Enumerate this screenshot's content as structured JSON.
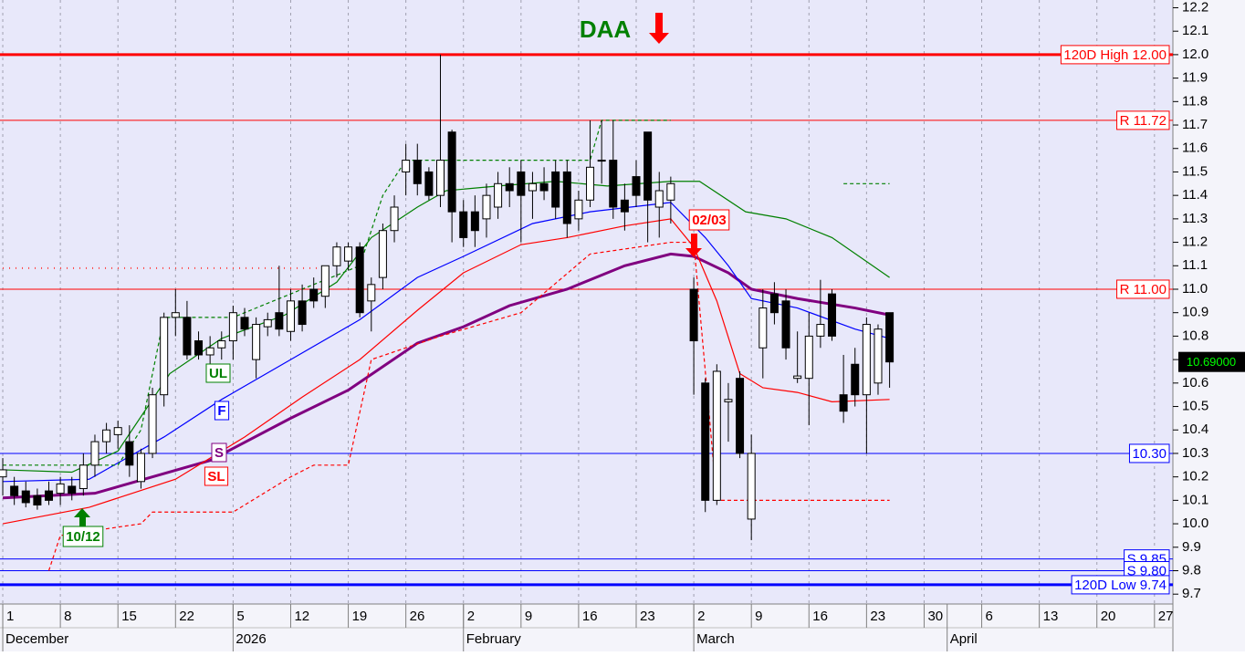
{
  "chart_data": {
    "type": "candlestick",
    "xlim": [
      -0.24,
      101.6
    ],
    "ylim": [
      9.658,
      12.233
    ],
    "xticks": [
      {
        "value": 0,
        "label": "1"
      },
      {
        "value": 5,
        "label": "8"
      },
      {
        "value": 10,
        "label": "15"
      },
      {
        "value": 15,
        "label": "22"
      },
      {
        "value": 20,
        "label": "5"
      },
      {
        "value": 25,
        "label": "12"
      },
      {
        "value": 30,
        "label": "19"
      },
      {
        "value": 35,
        "label": "26"
      },
      {
        "value": 40,
        "label": "2"
      },
      {
        "value": 45,
        "label": "9"
      },
      {
        "value": 50,
        "label": "16"
      },
      {
        "value": 55,
        "label": "23"
      },
      {
        "value": 60,
        "label": "2"
      },
      {
        "value": 65,
        "label": "9"
      },
      {
        "value": 70,
        "label": "16"
      },
      {
        "value": 75,
        "label": "23"
      },
      {
        "value": 80,
        "label": "30"
      },
      {
        "value": 85,
        "label": "6"
      },
      {
        "value": 90,
        "label": "13"
      },
      {
        "value": 95,
        "label": "20"
      },
      {
        "value": 100,
        "label": "27"
      }
    ],
    "month_labels": [
      {
        "value": 0,
        "label": "December"
      },
      {
        "value": 20,
        "label": "2026"
      },
      {
        "value": 40,
        "label": "February"
      },
      {
        "value": 60,
        "label": "March"
      },
      {
        "value": 82,
        "label": "April"
      }
    ],
    "yticks": [
      9.7,
      9.8,
      9.9,
      {
        "value": 10.0,
        "label": "10.0"
      },
      10.1,
      10.2,
      10.3,
      10.4,
      10.5,
      10.6,
      10.7,
      10.8,
      10.9,
      {
        "value": 11.0,
        "label": "11.0"
      },
      11.1,
      11.2,
      11.3,
      11.4,
      11.5,
      11.6,
      11.7,
      11.8,
      11.9,
      {
        "value": 12.0,
        "label": "12.0"
      },
      12.1,
      12.2
    ],
    "grid": true,
    "candles": {
      "up_color": "#ffffff",
      "down_color": "#000000",
      "x": [
        0,
        1,
        2,
        3,
        4,
        5,
        6,
        7,
        8,
        9,
        10,
        11,
        12,
        13,
        14,
        15,
        16,
        17,
        18,
        19,
        20,
        21,
        22,
        23,
        24,
        25,
        26,
        27,
        28,
        29,
        30,
        31,
        32,
        33,
        34,
        35,
        36,
        37,
        38,
        39,
        40,
        41,
        42,
        43,
        44,
        45,
        46,
        47,
        48,
        49,
        50,
        51,
        52,
        53,
        54,
        55,
        56,
        57,
        58,
        60,
        61,
        62,
        63,
        64,
        65,
        66,
        67,
        68,
        69,
        70,
        71,
        72,
        73,
        74,
        75,
        76,
        77
      ],
      "open": [
        10.2,
        10.16,
        10.14,
        10.12,
        10.14,
        10.13,
        10.16,
        10.15,
        10.25,
        10.35,
        10.38,
        10.35,
        10.18,
        10.3,
        10.55,
        10.88,
        10.88,
        10.78,
        10.72,
        10.75,
        10.78,
        10.88,
        10.7,
        10.84,
        10.9,
        10.82,
        10.95,
        11.0,
        10.97,
        11.1,
        11.12,
        11.18,
        10.95,
        11.05,
        11.25,
        11.5,
        11.55,
        11.5,
        11.4,
        11.67,
        11.33,
        11.33,
        11.3,
        11.35,
        11.45,
        11.5,
        11.42,
        11.45,
        11.5,
        11.5,
        11.3,
        11.38,
        11.55,
        11.55,
        11.38,
        11.48,
        11.67,
        11.35,
        11.38,
        11.0,
        10.6,
        10.1,
        10.52,
        10.62,
        10.02,
        10.75,
        10.98,
        10.95,
        10.62,
        10.62,
        10.8,
        10.98,
        10.55,
        10.68,
        10.55,
        10.6,
        10.9
      ],
      "high": [
        10.28,
        10.2,
        10.18,
        10.15,
        10.18,
        10.2,
        10.2,
        10.3,
        10.38,
        10.43,
        10.44,
        10.42,
        10.32,
        10.58,
        10.9,
        11.0,
        10.95,
        10.82,
        10.8,
        10.82,
        10.93,
        10.92,
        10.88,
        10.9,
        11.1,
        11.0,
        11.02,
        11.05,
        11.1,
        11.2,
        11.2,
        11.2,
        11.05,
        11.28,
        11.4,
        11.62,
        11.62,
        11.52,
        12.0,
        11.68,
        11.38,
        11.4,
        11.45,
        11.5,
        11.52,
        11.55,
        11.5,
        11.52,
        11.55,
        11.55,
        11.42,
        11.72,
        11.72,
        11.72,
        11.45,
        11.55,
        11.67,
        11.5,
        11.48,
        11.05,
        10.62,
        10.68,
        10.6,
        10.65,
        10.38,
        11.0,
        11.03,
        11.0,
        10.82,
        10.9,
        11.04,
        11.0,
        10.72,
        10.75,
        10.88,
        10.85,
        10.9
      ],
      "low": [
        10.12,
        10.08,
        10.07,
        10.06,
        10.08,
        10.08,
        10.1,
        10.12,
        10.2,
        10.3,
        10.32,
        10.2,
        10.15,
        10.28,
        10.5,
        10.8,
        10.7,
        10.7,
        10.65,
        10.7,
        10.7,
        10.8,
        10.62,
        10.8,
        10.8,
        10.78,
        10.82,
        10.92,
        10.92,
        11.05,
        11.08,
        10.88,
        10.82,
        11.0,
        11.2,
        11.4,
        11.4,
        11.38,
        11.35,
        11.2,
        11.18,
        11.18,
        11.22,
        11.3,
        11.35,
        11.2,
        11.3,
        11.38,
        11.3,
        11.22,
        11.25,
        11.35,
        11.45,
        11.3,
        11.25,
        11.35,
        11.2,
        11.22,
        11.28,
        10.55,
        10.05,
        10.08,
        10.35,
        10.28,
        9.93,
        10.62,
        10.85,
        10.7,
        10.6,
        10.42,
        10.75,
        10.78,
        10.43,
        10.5,
        10.3,
        10.55,
        10.58
      ],
      "close": [
        10.23,
        10.12,
        10.09,
        10.08,
        10.1,
        10.17,
        10.13,
        10.25,
        10.35,
        10.4,
        10.41,
        10.25,
        10.3,
        10.55,
        10.88,
        10.9,
        10.72,
        10.72,
        10.75,
        10.78,
        10.9,
        10.83,
        10.85,
        10.87,
        10.83,
        10.95,
        10.85,
        10.95,
        11.1,
        11.18,
        11.18,
        10.9,
        11.02,
        11.25,
        11.35,
        11.55,
        11.45,
        11.4,
        11.55,
        11.33,
        11.22,
        11.25,
        11.4,
        11.45,
        11.42,
        11.4,
        11.45,
        11.42,
        11.35,
        11.28,
        11.38,
        11.52,
        11.55,
        11.35,
        11.33,
        11.4,
        11.38,
        11.42,
        11.45,
        10.78,
        10.1,
        10.65,
        10.53,
        10.3,
        10.3,
        10.92,
        10.9,
        10.75,
        10.63,
        10.8,
        10.85,
        10.8,
        10.48,
        10.55,
        10.85,
        10.83,
        10.69
      ]
    },
    "lines": [
      {
        "name": "S",
        "color": "#800080",
        "style": "heavy",
        "x": [
          0,
          8,
          18,
          25,
          30,
          36,
          40,
          44,
          49,
          54,
          58,
          60,
          63,
          65,
          69,
          74,
          77
        ],
        "values": [
          10.11,
          10.13,
          10.27,
          10.45,
          10.57,
          10.77,
          10.84,
          10.93,
          11.0,
          11.1,
          11.15,
          11.14,
          11.07,
          11.0,
          10.96,
          10.92,
          10.89
        ]
      },
      {
        "name": "F",
        "color": "#0000ff",
        "style": "solid",
        "x": [
          0,
          7.5,
          14,
          19,
          25,
          31,
          36,
          40,
          46,
          51,
          58,
          61,
          63,
          65,
          69,
          74,
          77
        ],
        "values": [
          10.18,
          10.19,
          10.37,
          10.53,
          10.7,
          10.87,
          11.05,
          11.14,
          11.28,
          11.33,
          11.37,
          11.22,
          11.1,
          10.96,
          10.92,
          10.83,
          10.79
        ]
      },
      {
        "name": "SL",
        "color": "#ff0000",
        "style": "solid",
        "x": [
          0,
          7.5,
          15,
          21,
          26,
          31,
          36,
          40,
          45,
          49,
          54,
          58,
          60,
          62,
          64,
          66,
          69,
          72,
          77
        ],
        "values": [
          10.0,
          10.07,
          10.19,
          10.37,
          10.54,
          10.7,
          10.91,
          11.07,
          11.19,
          11.22,
          11.27,
          11.3,
          11.18,
          10.95,
          10.64,
          10.58,
          10.56,
          10.52,
          10.53
        ]
      },
      {
        "name": "UL",
        "color": "#008000",
        "style": "solid",
        "x": [
          0,
          6,
          10,
          14.5,
          19,
          24.5,
          29,
          32,
          36,
          38.5,
          43,
          48,
          52.5,
          58,
          60.5,
          64.5,
          68,
          72,
          77
        ],
        "values": [
          10.23,
          10.22,
          10.31,
          10.64,
          10.79,
          10.89,
          11.03,
          11.22,
          11.35,
          11.42,
          11.44,
          11.46,
          11.44,
          11.46,
          11.46,
          11.33,
          11.3,
          11.22,
          11.05
        ]
      },
      {
        "color": "#008000",
        "style": "dashed",
        "x": [
          0,
          10,
          12,
          14,
          20,
          26,
          31,
          33,
          35,
          38,
          51,
          52,
          58,
          72,
          73,
          77
        ],
        "values": [
          10.25,
          10.25,
          10.4,
          10.88,
          10.88,
          11.0,
          11.1,
          11.4,
          11.55,
          11.55,
          11.55,
          11.72,
          11.72,
          null,
          11.45,
          11.45
        ]
      },
      {
        "color": "#ff0000",
        "style": "dashed",
        "x": [
          4,
          5,
          12,
          13,
          20,
          25,
          27,
          30,
          32,
          38,
          45,
          51,
          58,
          60,
          62,
          77
        ],
        "values": [
          9.8,
          9.95,
          10.0,
          10.05,
          10.05,
          10.2,
          10.25,
          10.25,
          10.7,
          10.8,
          10.9,
          11.15,
          11.2,
          11.2,
          10.1,
          10.1
        ]
      },
      {
        "color": "#ff4040",
        "style": "dotted",
        "x": [
          0,
          28
        ],
        "values": [
          11.09,
          11.09
        ]
      },
      {
        "color": "#0000ff",
        "style": "dotted",
        "x": [
          9,
          18
        ],
        "values": [
          9.74,
          9.74
        ]
      }
    ],
    "levels": [
      {
        "value": 12.0,
        "label": "120D High 12.00",
        "color": "#ff0000",
        "style": "heavy"
      },
      {
        "value": 11.72,
        "label": "R 11.72",
        "color": "#ff0000",
        "style": "solid"
      },
      {
        "value": 11.0,
        "label": "R 11.00",
        "color": "#ff0000",
        "style": "solid"
      },
      {
        "value": 10.3,
        "label": "10.30",
        "color": "#0000ff",
        "style": "solid"
      },
      {
        "value": 9.85,
        "label": "S 9.85",
        "color": "#0000ff",
        "style": "solid"
      },
      {
        "value": 9.8,
        "label": "S 9.80",
        "color": "#0000ff",
        "style": "solid"
      },
      {
        "value": 9.74,
        "label": "120D Low 9.74",
        "color": "#0000ff",
        "style": "heavy"
      }
    ],
    "last": {
      "value": 10.69,
      "label": "10.69000"
    },
    "signals": [
      {
        "text": "DAA",
        "color": "#008000"
      },
      {
        "text": "02/03",
        "color": "#ff0000"
      },
      {
        "text": "10/12",
        "color": "#008000"
      }
    ]
  }
}
